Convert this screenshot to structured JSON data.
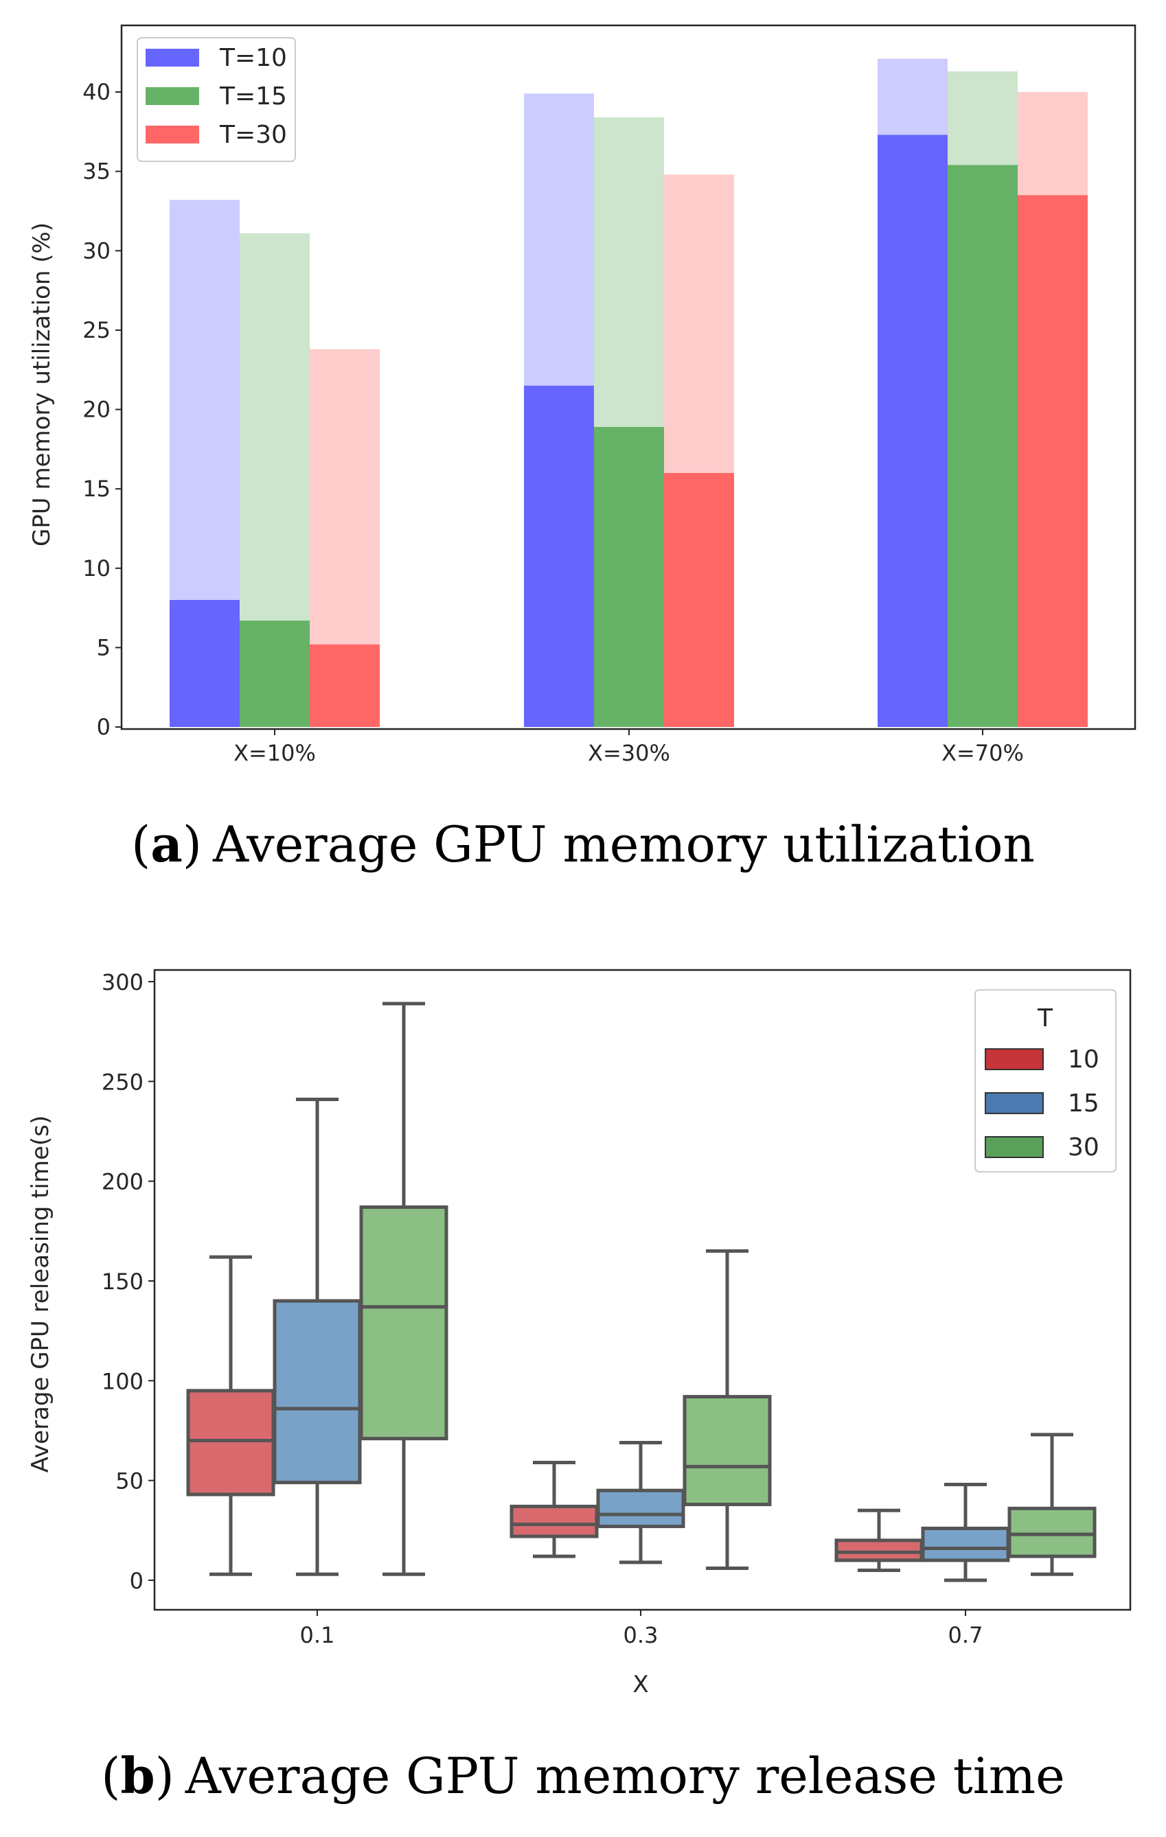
{
  "chart_data": [
    {
      "type": "bar",
      "panel": "a",
      "caption": {
        "letter": "a",
        "open_paren": "(",
        "close_paren": ")",
        "text": "Average GPU memory utilization"
      },
      "categories": [
        "X=10%",
        "X=30%",
        "X=70%"
      ],
      "xlabel": "",
      "ylabel": "GPU memory utilization (%)",
      "ylim": [
        0,
        44
      ],
      "yticks": [
        0,
        5,
        10,
        15,
        20,
        25,
        30,
        35,
        40
      ],
      "legend_position": "top-left",
      "series": [
        {
          "name": "T=10",
          "color": "#6666ff",
          "light_color": "#ccccff",
          "values": [
            8.0,
            21.5,
            37.3
          ],
          "max_values": [
            33.2,
            39.9,
            42.1
          ]
        },
        {
          "name": "T=15",
          "color": "#66b266",
          "light_color": "#cce5cc",
          "values": [
            6.7,
            18.9,
            35.4
          ],
          "max_values": [
            31.1,
            38.4,
            41.3
          ]
        },
        {
          "name": "T=30",
          "color": "#ff6666",
          "light_color": "#ffcccc",
          "values": [
            5.2,
            16.0,
            33.5
          ],
          "max_values": [
            23.8,
            34.8,
            40.0
          ]
        }
      ]
    },
    {
      "type": "box",
      "panel": "b",
      "caption": {
        "letter": "b",
        "open_paren": "(",
        "close_paren": ")",
        "text": "Average GPU memory release time"
      },
      "categories": [
        "0.1",
        "0.3",
        "0.7"
      ],
      "xlabel": "X",
      "ylabel": "Average GPU releasing time(s)",
      "ylim": [
        -15,
        307
      ],
      "yticks": [
        0,
        50,
        100,
        150,
        200,
        250,
        300
      ],
      "legend_title": "T",
      "legend_position": "top-right",
      "series": [
        {
          "name": "10",
          "color": "#d86a6e",
          "legend_color": "#c63539",
          "boxes": [
            {
              "whislo": 3,
              "q1": 43,
              "med": 70,
              "q3": 95,
              "whishi": 162
            },
            {
              "whislo": 12,
              "q1": 22,
              "med": 28,
              "q3": 37,
              "whishi": 59
            },
            {
              "whislo": 5,
              "q1": 10,
              "med": 14,
              "q3": 20,
              "whishi": 35
            }
          ]
        },
        {
          "name": "15",
          "color": "#7aa2c8",
          "legend_color": "#4a7ab0",
          "boxes": [
            {
              "whislo": 3,
              "q1": 49,
              "med": 86,
              "q3": 140,
              "whishi": 241
            },
            {
              "whislo": 9,
              "q1": 27,
              "med": 33,
              "q3": 45,
              "whishi": 69
            },
            {
              "whislo": 0,
              "q1": 10,
              "med": 16,
              "q3": 26,
              "whishi": 48
            }
          ]
        },
        {
          "name": "30",
          "color": "#8bbf84",
          "legend_color": "#5aa05a",
          "boxes": [
            {
              "whislo": 3,
              "q1": 71,
              "med": 137,
              "q3": 187,
              "whishi": 289
            },
            {
              "whislo": 6,
              "q1": 38,
              "med": 57,
              "q3": 92,
              "whishi": 165
            },
            {
              "whislo": 3,
              "q1": 12,
              "med": 23,
              "q3": 36,
              "whishi": 73
            }
          ]
        }
      ]
    }
  ]
}
